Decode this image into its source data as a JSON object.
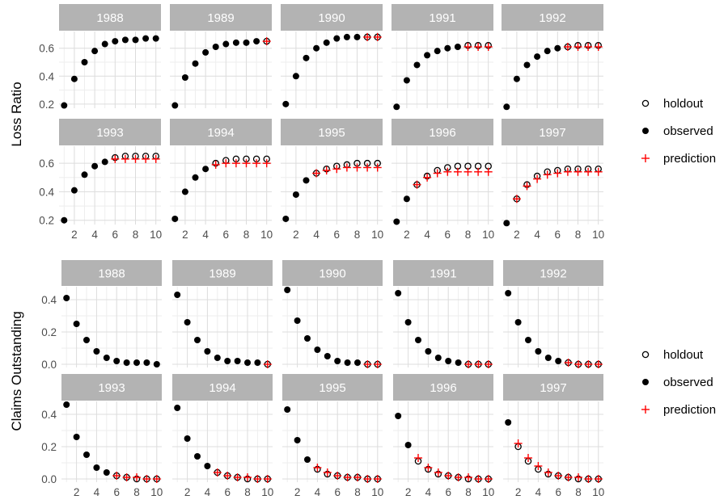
{
  "colors": {
    "strip": "#b3b3b3",
    "grid_major": "#dcdcdc",
    "grid_minor": "#eeeeee",
    "observed": "#000000",
    "holdout": "#000000",
    "prediction": "#ff0000"
  },
  "legend": {
    "holdout": "holdout",
    "observed": "observed",
    "prediction": "prediction"
  },
  "chart_data": [
    {
      "type": "scatter",
      "ylabel": "Loss Ratio",
      "xlim": [
        0.5,
        10.5
      ],
      "x_ticks": [
        2,
        4,
        6,
        8,
        10
      ],
      "ylim": [
        0.17,
        0.72
      ],
      "y_ticks": [
        0.2,
        0.4,
        0.6
      ],
      "y_tick_labels": [
        "0.2",
        "0.4",
        "0.6"
      ],
      "panels": [
        {
          "label": "1988",
          "observed": [
            0.19,
            0.38,
            0.5,
            0.58,
            0.63,
            0.65,
            0.66,
            0.66,
            0.67,
            0.67
          ],
          "holdout": [],
          "prediction": []
        },
        {
          "label": "1989",
          "observed": [
            0.19,
            0.39,
            0.49,
            0.57,
            0.61,
            0.63,
            0.64,
            0.64,
            0.65
          ],
          "holdout": [
            0.65
          ],
          "prediction": [
            0.65
          ]
        },
        {
          "label": "1990",
          "observed": [
            0.2,
            0.4,
            0.53,
            0.6,
            0.64,
            0.67,
            0.68,
            0.68
          ],
          "holdout": [
            0.68,
            0.68
          ],
          "prediction": [
            0.68,
            0.68
          ]
        },
        {
          "label": "1991",
          "observed": [
            0.18,
            0.37,
            0.48,
            0.55,
            0.58,
            0.6,
            0.61
          ],
          "holdout": [
            0.62,
            0.62,
            0.62
          ],
          "prediction": [
            0.61,
            0.61,
            0.61
          ]
        },
        {
          "label": "1992",
          "observed": [
            0.18,
            0.38,
            0.48,
            0.54,
            0.58,
            0.6
          ],
          "holdout": [
            0.61,
            0.62,
            0.62,
            0.62
          ],
          "prediction": [
            0.61,
            0.61,
            0.61,
            0.61
          ]
        },
        {
          "label": "1993",
          "observed": [
            0.2,
            0.41,
            0.52,
            0.58,
            0.61
          ],
          "holdout": [
            0.64,
            0.65,
            0.65,
            0.65,
            0.65
          ],
          "prediction": [
            0.63,
            0.63,
            0.63,
            0.63,
            0.63
          ]
        },
        {
          "label": "1994",
          "observed": [
            0.21,
            0.4,
            0.5,
            0.56
          ],
          "holdout": [
            0.6,
            0.62,
            0.63,
            0.63,
            0.63,
            0.63
          ],
          "prediction": [
            0.59,
            0.6,
            0.6,
            0.6,
            0.6,
            0.6
          ]
        },
        {
          "label": "1995",
          "observed": [
            0.21,
            0.38,
            0.48
          ],
          "holdout": [
            0.53,
            0.56,
            0.58,
            0.59,
            0.6,
            0.6,
            0.6
          ],
          "prediction": [
            0.53,
            0.55,
            0.56,
            0.57,
            0.57,
            0.57,
            0.57
          ]
        },
        {
          "label": "1996",
          "observed": [
            0.19,
            0.35
          ],
          "holdout": [
            0.45,
            0.51,
            0.55,
            0.57,
            0.58,
            0.58,
            0.58,
            0.58
          ],
          "prediction": [
            0.45,
            0.5,
            0.53,
            0.54,
            0.54,
            0.54,
            0.54,
            0.54
          ]
        },
        {
          "label": "1997",
          "observed": [
            0.18
          ],
          "holdout": [
            0.35,
            0.45,
            0.51,
            0.54,
            0.55,
            0.56,
            0.56,
            0.56,
            0.56
          ],
          "prediction": [
            0.35,
            0.44,
            0.49,
            0.52,
            0.53,
            0.54,
            0.54,
            0.54,
            0.54
          ]
        }
      ]
    },
    {
      "type": "scatter",
      "ylabel": "Claims Outstanding",
      "xlim": [
        0.5,
        10.5
      ],
      "x_ticks": [
        2,
        4,
        6,
        8,
        10
      ],
      "ylim": [
        -0.02,
        0.48
      ],
      "y_ticks": [
        0.0,
        0.2,
        0.4
      ],
      "y_tick_labels": [
        "0.0",
        "0.2",
        "0.4"
      ],
      "panels": [
        {
          "label": "1988",
          "observed": [
            0.41,
            0.25,
            0.15,
            0.08,
            0.04,
            0.02,
            0.01,
            0.01,
            0.01,
            0.0
          ],
          "holdout": [],
          "prediction": []
        },
        {
          "label": "1989",
          "observed": [
            0.43,
            0.26,
            0.15,
            0.08,
            0.04,
            0.02,
            0.02,
            0.01,
            0.01
          ],
          "holdout": [
            0.0
          ],
          "prediction": [
            0.0
          ]
        },
        {
          "label": "1990",
          "observed": [
            0.46,
            0.27,
            0.16,
            0.09,
            0.05,
            0.02,
            0.01,
            0.01
          ],
          "holdout": [
            0.0,
            0.0
          ],
          "prediction": [
            0.0,
            0.0
          ]
        },
        {
          "label": "1991",
          "observed": [
            0.44,
            0.26,
            0.15,
            0.08,
            0.04,
            0.02,
            0.01
          ],
          "holdout": [
            0.0,
            0.0,
            0.0
          ],
          "prediction": [
            0.0,
            0.0,
            0.0
          ]
        },
        {
          "label": "1992",
          "observed": [
            0.44,
            0.26,
            0.15,
            0.08,
            0.04,
            0.02
          ],
          "holdout": [
            0.01,
            0.0,
            0.0,
            0.0
          ],
          "prediction": [
            0.01,
            0.0,
            0.0,
            0.0
          ]
        },
        {
          "label": "1993",
          "observed": [
            0.46,
            0.26,
            0.15,
            0.07,
            0.04
          ],
          "holdout": [
            0.02,
            0.01,
            0.0,
            0.0,
            0.0
          ],
          "prediction": [
            0.02,
            0.01,
            0.01,
            0.0,
            0.0
          ]
        },
        {
          "label": "1994",
          "observed": [
            0.44,
            0.25,
            0.14,
            0.08
          ],
          "holdout": [
            0.04,
            0.02,
            0.01,
            0.0,
            0.0,
            0.0
          ],
          "prediction": [
            0.04,
            0.02,
            0.01,
            0.01,
            0.0,
            0.0
          ]
        },
        {
          "label": "1995",
          "observed": [
            0.43,
            0.24,
            0.12
          ],
          "holdout": [
            0.06,
            0.03,
            0.02,
            0.01,
            0.01,
            0.0,
            0.0
          ],
          "prediction": [
            0.07,
            0.04,
            0.02,
            0.01,
            0.01,
            0.0,
            0.0
          ]
        },
        {
          "label": "1996",
          "observed": [
            0.39,
            0.21
          ],
          "holdout": [
            0.11,
            0.06,
            0.03,
            0.02,
            0.01,
            0.0,
            0.0,
            0.0
          ],
          "prediction": [
            0.13,
            0.07,
            0.04,
            0.02,
            0.01,
            0.01,
            0.0,
            0.0
          ]
        },
        {
          "label": "1997",
          "observed": [
            0.35
          ],
          "holdout": [
            0.2,
            0.11,
            0.06,
            0.03,
            0.02,
            0.01,
            0.0,
            0.0,
            0.0
          ],
          "prediction": [
            0.22,
            0.13,
            0.08,
            0.04,
            0.02,
            0.01,
            0.01,
            0.0,
            0.0
          ]
        }
      ]
    }
  ]
}
